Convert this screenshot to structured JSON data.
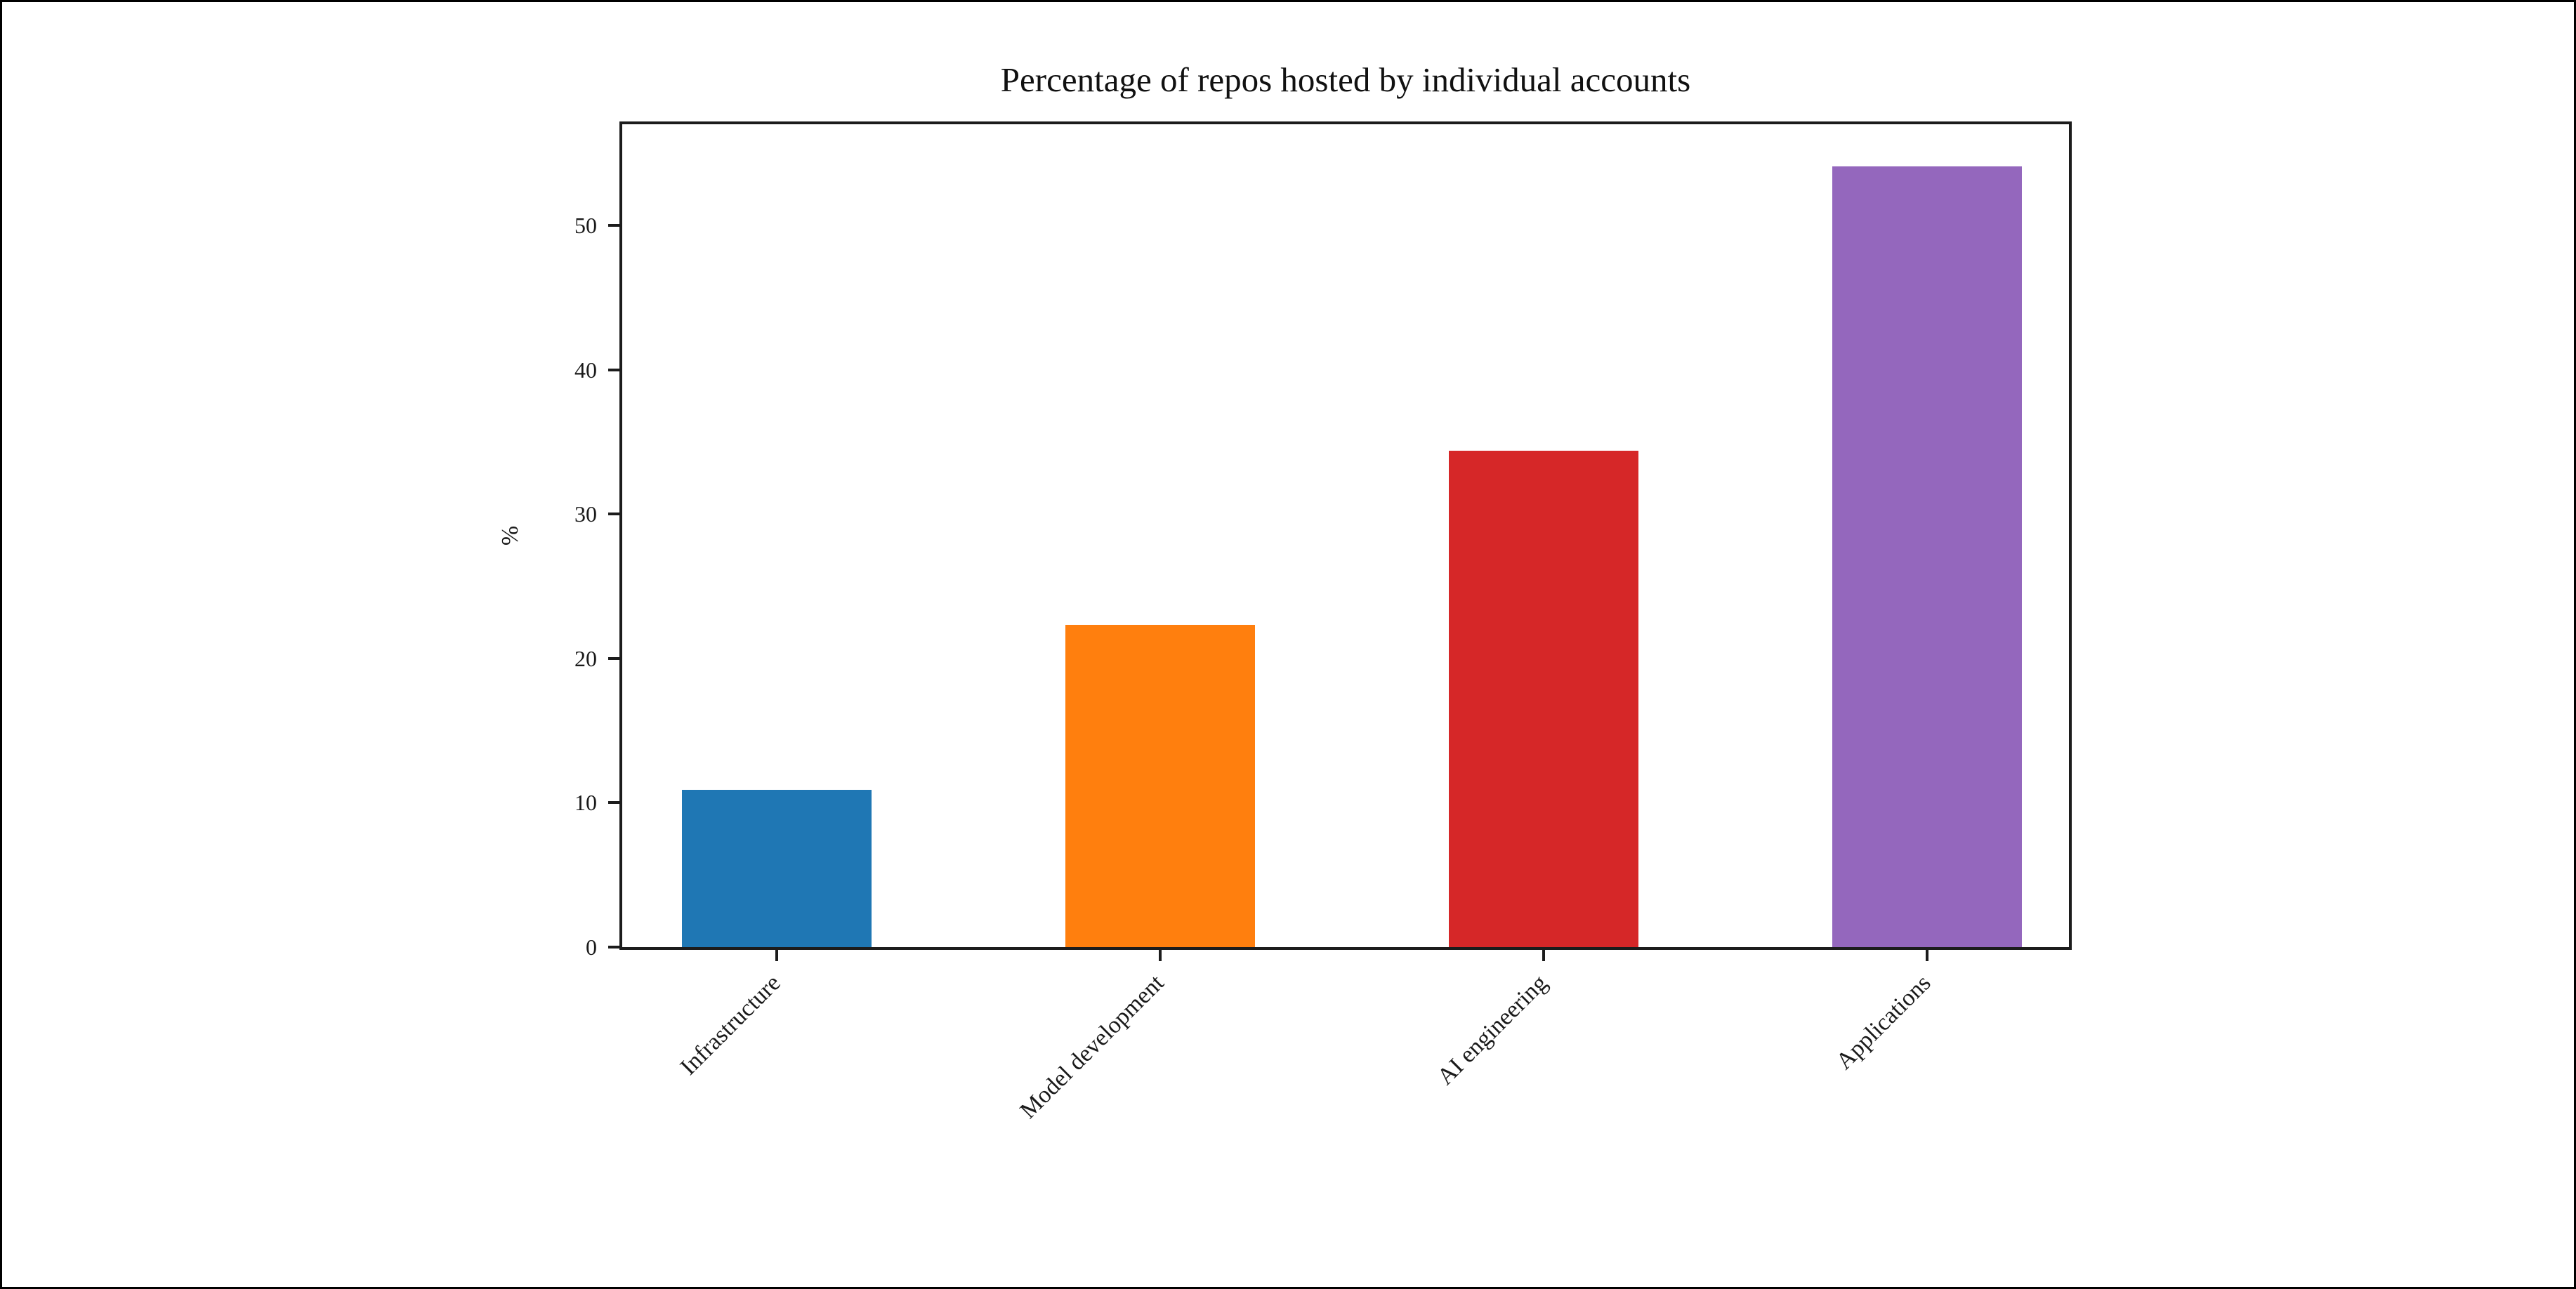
{
  "page": {
    "background": "#ffffff",
    "border_color": "#000000"
  },
  "chart_data": {
    "type": "bar",
    "title": "Percentage of repos hosted by individual accounts",
    "xlabel": "",
    "ylabel": "%",
    "categories": [
      "Infrastructure",
      "Model development",
      "AI engineering",
      "Applications"
    ],
    "values": [
      10.9,
      22.3,
      34.4,
      54.1
    ],
    "bar_colors": [
      "#1f77b4",
      "#ff7f0e",
      "#d62728",
      "#9467bd"
    ],
    "yticks": [
      0,
      10,
      20,
      30,
      40,
      50
    ],
    "ylim": [
      0,
      57
    ],
    "grid": false,
    "legend": null,
    "x_tick_rotation_deg": 45,
    "text_color": "#1a1a1a",
    "spine_color": "#1c1c1c"
  }
}
